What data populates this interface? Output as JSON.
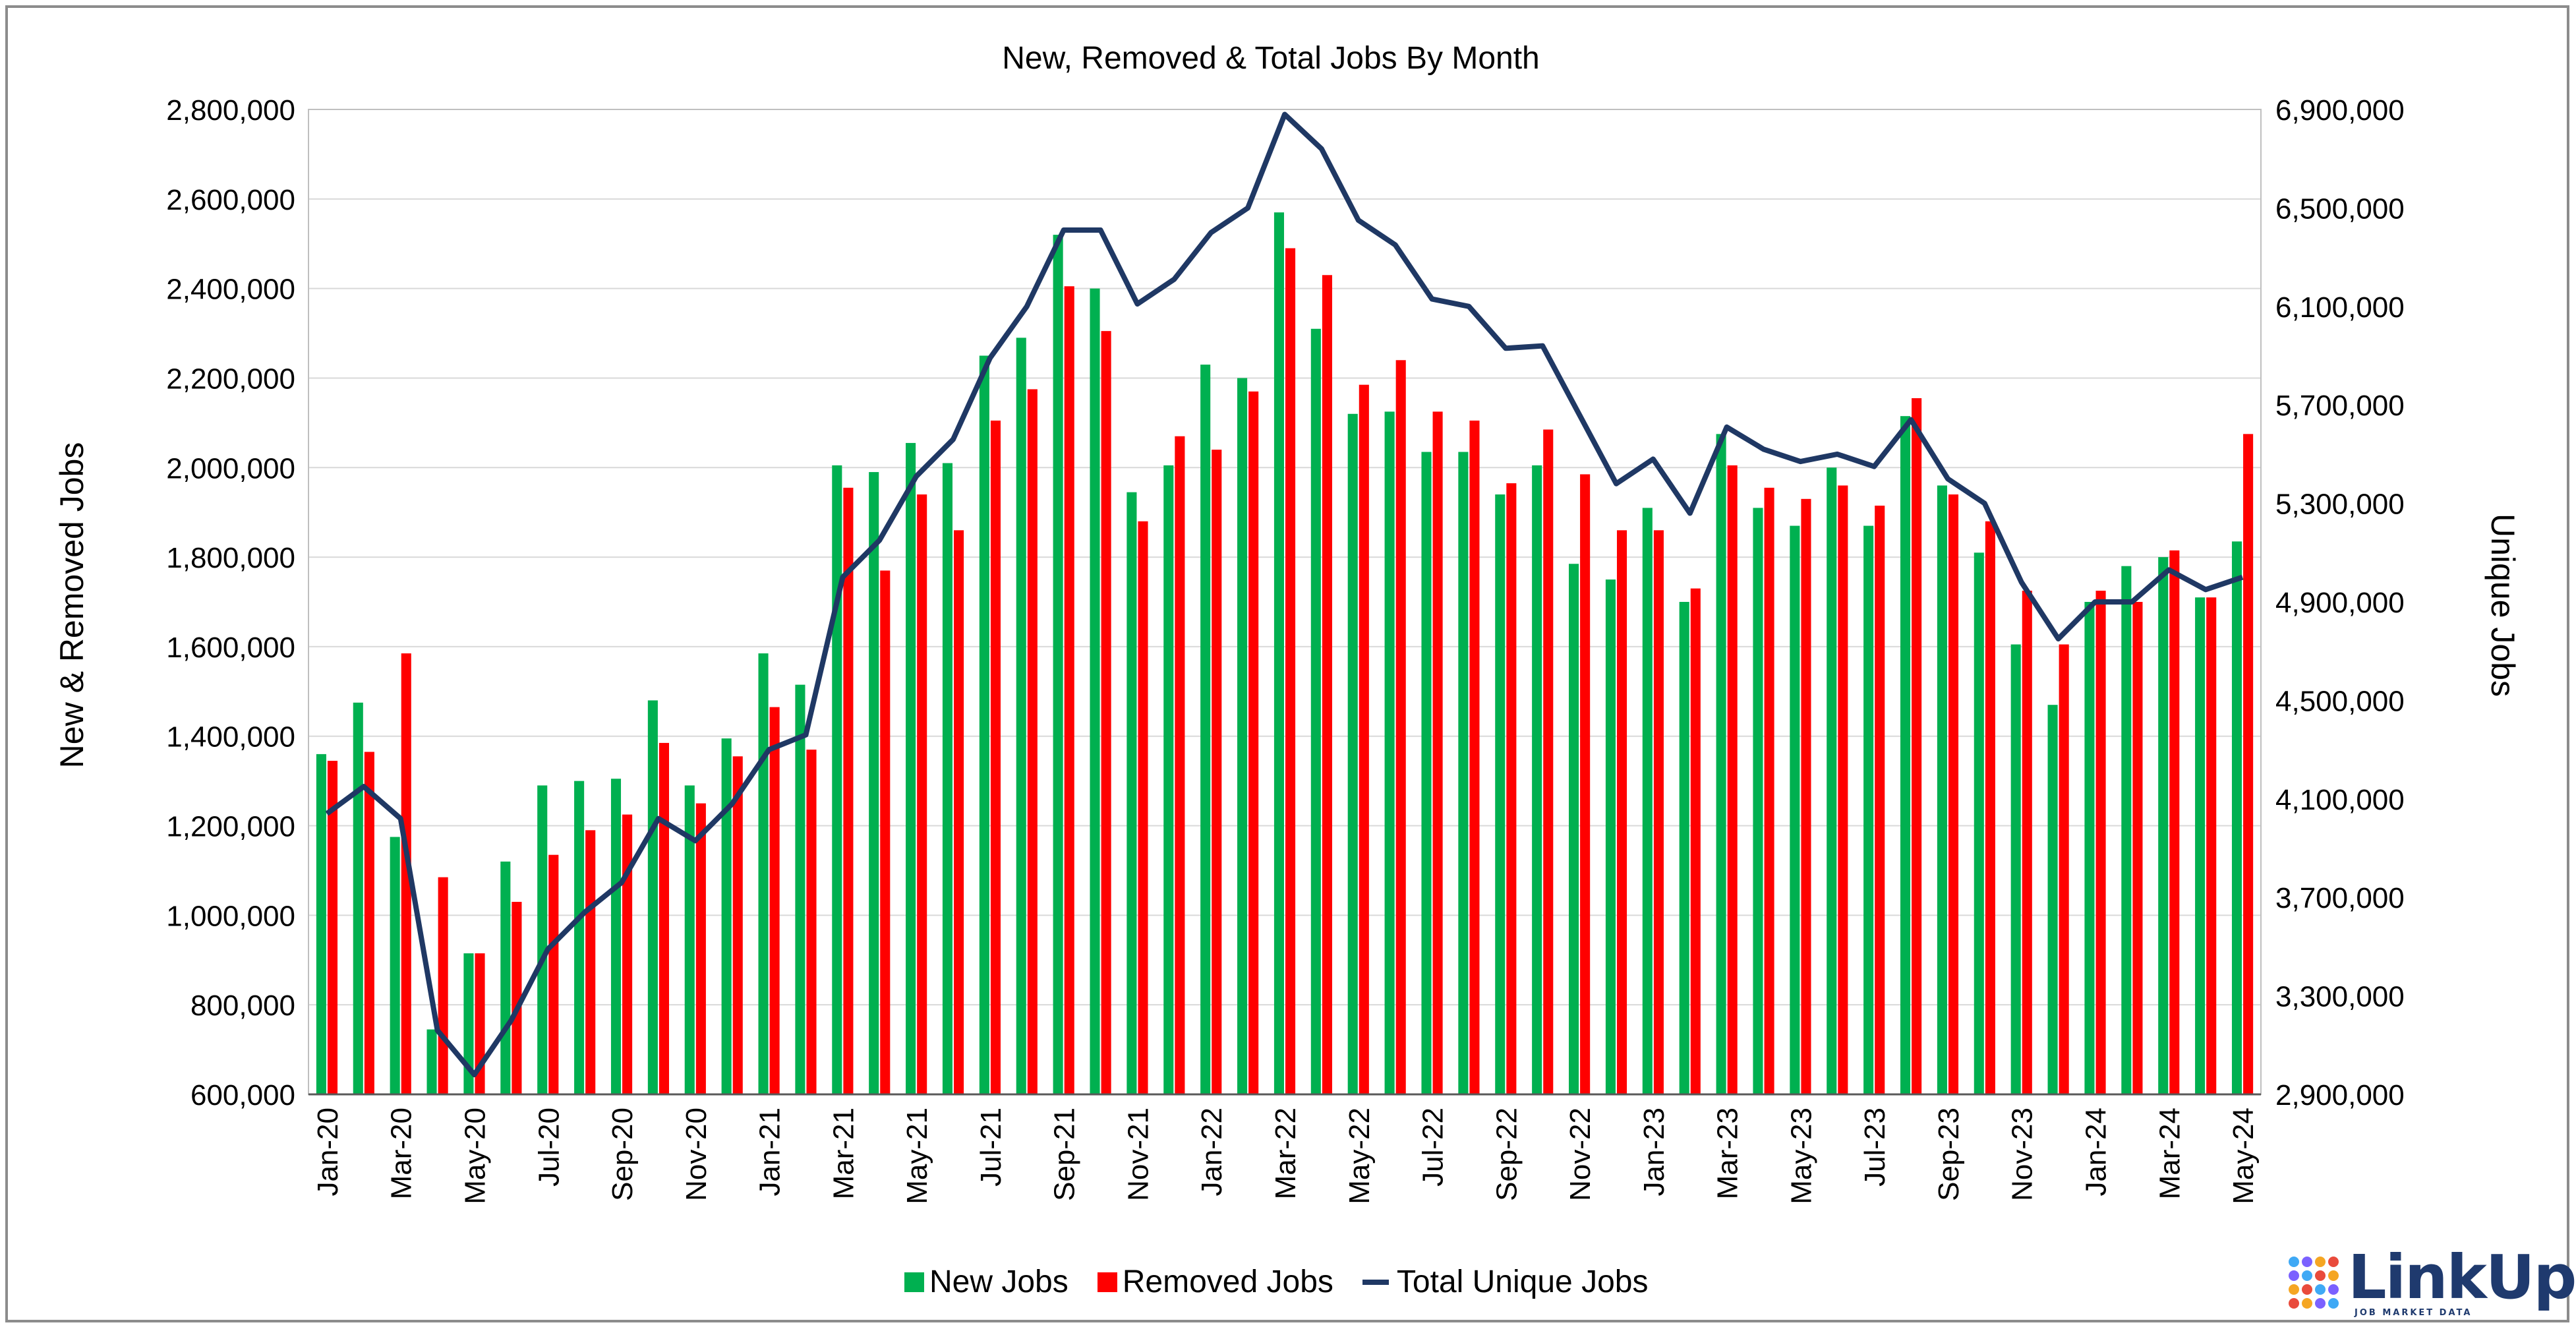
{
  "chart_data": {
    "type": "bar",
    "title": "New, Removed & Total Jobs By Month",
    "ylabel": "New & Removed Jobs",
    "y2label": "Unique Jobs",
    "ylim": [
      600000,
      2800000
    ],
    "y2lim": [
      2900000,
      6900000
    ],
    "yticks": [
      "600,000",
      "800,000",
      "1,000,000",
      "1,200,000",
      "1,400,000",
      "1,600,000",
      "1,800,000",
      "2,000,000",
      "2,200,000",
      "2,400,000",
      "2,600,000",
      "2,800,000"
    ],
    "y2ticks": [
      "2,900,000",
      "3,300,000",
      "3,700,000",
      "4,100,000",
      "4,500,000",
      "4,900,000",
      "5,300,000",
      "5,700,000",
      "6,100,000",
      "6,500,000",
      "6,900,000"
    ],
    "categories": [
      "Jan-20",
      "Feb-20",
      "Mar-20",
      "Apr-20",
      "May-20",
      "Jun-20",
      "Jul-20",
      "Aug-20",
      "Sep-20",
      "Oct-20",
      "Nov-20",
      "Dec-20",
      "Jan-21",
      "Feb-21",
      "Mar-21",
      "Apr-21",
      "May-21",
      "Jun-21",
      "Jul-21",
      "Aug-21",
      "Sep-21",
      "Oct-21",
      "Nov-21",
      "Dec-21",
      "Jan-22",
      "Feb-22",
      "Mar-22",
      "Apr-22",
      "May-22",
      "Jun-22",
      "Jul-22",
      "Aug-22",
      "Sep-22",
      "Oct-22",
      "Nov-22",
      "Dec-22",
      "Jan-23",
      "Feb-23",
      "Mar-23",
      "Apr-23",
      "May-23",
      "Jun-23",
      "Jul-23",
      "Aug-23",
      "Sep-23",
      "Oct-23",
      "Nov-23",
      "Dec-23",
      "Jan-24",
      "Feb-24",
      "Mar-24",
      "Apr-24",
      "May-24"
    ],
    "xtick_labels": [
      "Jan-20",
      "Mar-20",
      "May-20",
      "Jul-20",
      "Sep-20",
      "Nov-20",
      "Jan-21",
      "Mar-21",
      "May-21",
      "Jul-21",
      "Sep-21",
      "Nov-21",
      "Jan-22",
      "Mar-22",
      "May-22",
      "Jul-22",
      "Sep-22",
      "Nov-22",
      "Jan-23",
      "Mar-23",
      "May-23",
      "Jul-23",
      "Sep-23",
      "Nov-23",
      "Jan-24",
      "Mar-24",
      "May-24"
    ],
    "series": [
      {
        "name": "New Jobs",
        "axis": "left",
        "color": "#00b050",
        "values": [
          1360000,
          1475000,
          1175000,
          745000,
          915000,
          1120000,
          1290000,
          1300000,
          1305000,
          1480000,
          1290000,
          1395000,
          1585000,
          1515000,
          2005000,
          1990000,
          2055000,
          2010000,
          2250000,
          2290000,
          2520000,
          2400000,
          1945000,
          2005000,
          2230000,
          2200000,
          2570000,
          2310000,
          2120000,
          2125000,
          2035000,
          2035000,
          1940000,
          2005000,
          1785000,
          1750000,
          1910000,
          1700000,
          2075000,
          1910000,
          1870000,
          2000000,
          1870000,
          2115000,
          1960000,
          1810000,
          1605000,
          1470000,
          1700000,
          1780000,
          1800000,
          1710000,
          1835000
        ]
      },
      {
        "name": "Removed Jobs",
        "axis": "left",
        "color": "#ff0000",
        "values": [
          1345000,
          1365000,
          1585000,
          1085000,
          915000,
          1030000,
          1135000,
          1190000,
          1225000,
          1385000,
          1250000,
          1355000,
          1465000,
          1370000,
          1955000,
          1770000,
          1940000,
          1860000,
          2105000,
          2175000,
          2405000,
          2305000,
          1880000,
          2070000,
          2040000,
          2170000,
          2490000,
          2430000,
          2185000,
          2240000,
          2125000,
          2105000,
          1965000,
          2085000,
          1985000,
          1860000,
          1860000,
          1730000,
          2005000,
          1955000,
          1930000,
          1960000,
          1915000,
          2155000,
          1940000,
          1880000,
          1725000,
          1605000,
          1725000,
          1700000,
          1815000,
          1710000,
          2075000
        ]
      },
      {
        "name": "Total Unique Jobs",
        "axis": "right",
        "type": "line",
        "color": "#1f3864",
        "values": [
          4040000,
          4150000,
          4020000,
          3160000,
          2980000,
          3200000,
          3490000,
          3640000,
          3760000,
          4020000,
          3930000,
          4080000,
          4300000,
          4360000,
          5000000,
          5150000,
          5410000,
          5560000,
          5890000,
          6100000,
          6410000,
          6410000,
          6110000,
          6210000,
          6400000,
          6500000,
          6880000,
          6740000,
          6450000,
          6350000,
          6130000,
          6100000,
          5930000,
          5940000,
          5660000,
          5380000,
          5480000,
          5260000,
          5610000,
          5520000,
          5470000,
          5500000,
          5450000,
          5640000,
          5400000,
          5300000,
          4980000,
          4750000,
          4900000,
          4900000,
          5030000,
          4950000,
          5000000
        ]
      }
    ],
    "legend_position": "bottom",
    "grid": true
  },
  "legend": {
    "new_label": "New Jobs",
    "removed_label": "Removed Jobs",
    "total_label": "Total Unique Jobs"
  },
  "logo": {
    "name": "LinkUp",
    "tagline": "JOB MARKET DATA"
  },
  "colors": {
    "new": "#00b050",
    "removed": "#ff0000",
    "total": "#1f3864",
    "logo": "#1f3a6e"
  }
}
